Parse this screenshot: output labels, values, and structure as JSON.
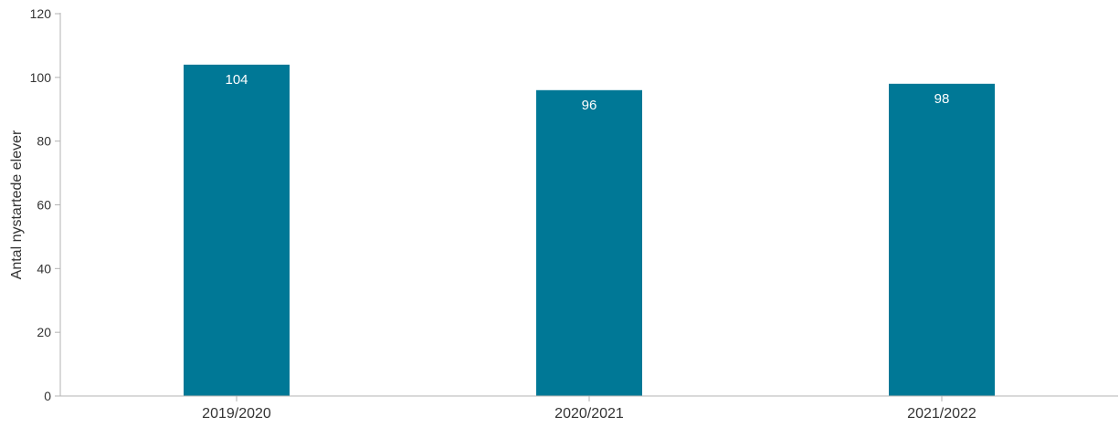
{
  "chart_data": {
    "type": "bar",
    "categories": [
      "2019/2020",
      "2020/2021",
      "2021/2022"
    ],
    "values": [
      104,
      96,
      98
    ],
    "data_labels": [
      "104",
      "96",
      "98"
    ],
    "xlabel": "",
    "ylabel": "Antal nystartede elever",
    "ylim": [
      0,
      120
    ],
    "yticks": [
      0,
      20,
      40,
      60,
      80,
      100,
      120
    ],
    "grid": false,
    "legend": "none",
    "colors": {
      "bar": "#007896",
      "axis": "#b3b3b3",
      "tick_text": "#333333",
      "data_label": "#ffffff"
    }
  }
}
